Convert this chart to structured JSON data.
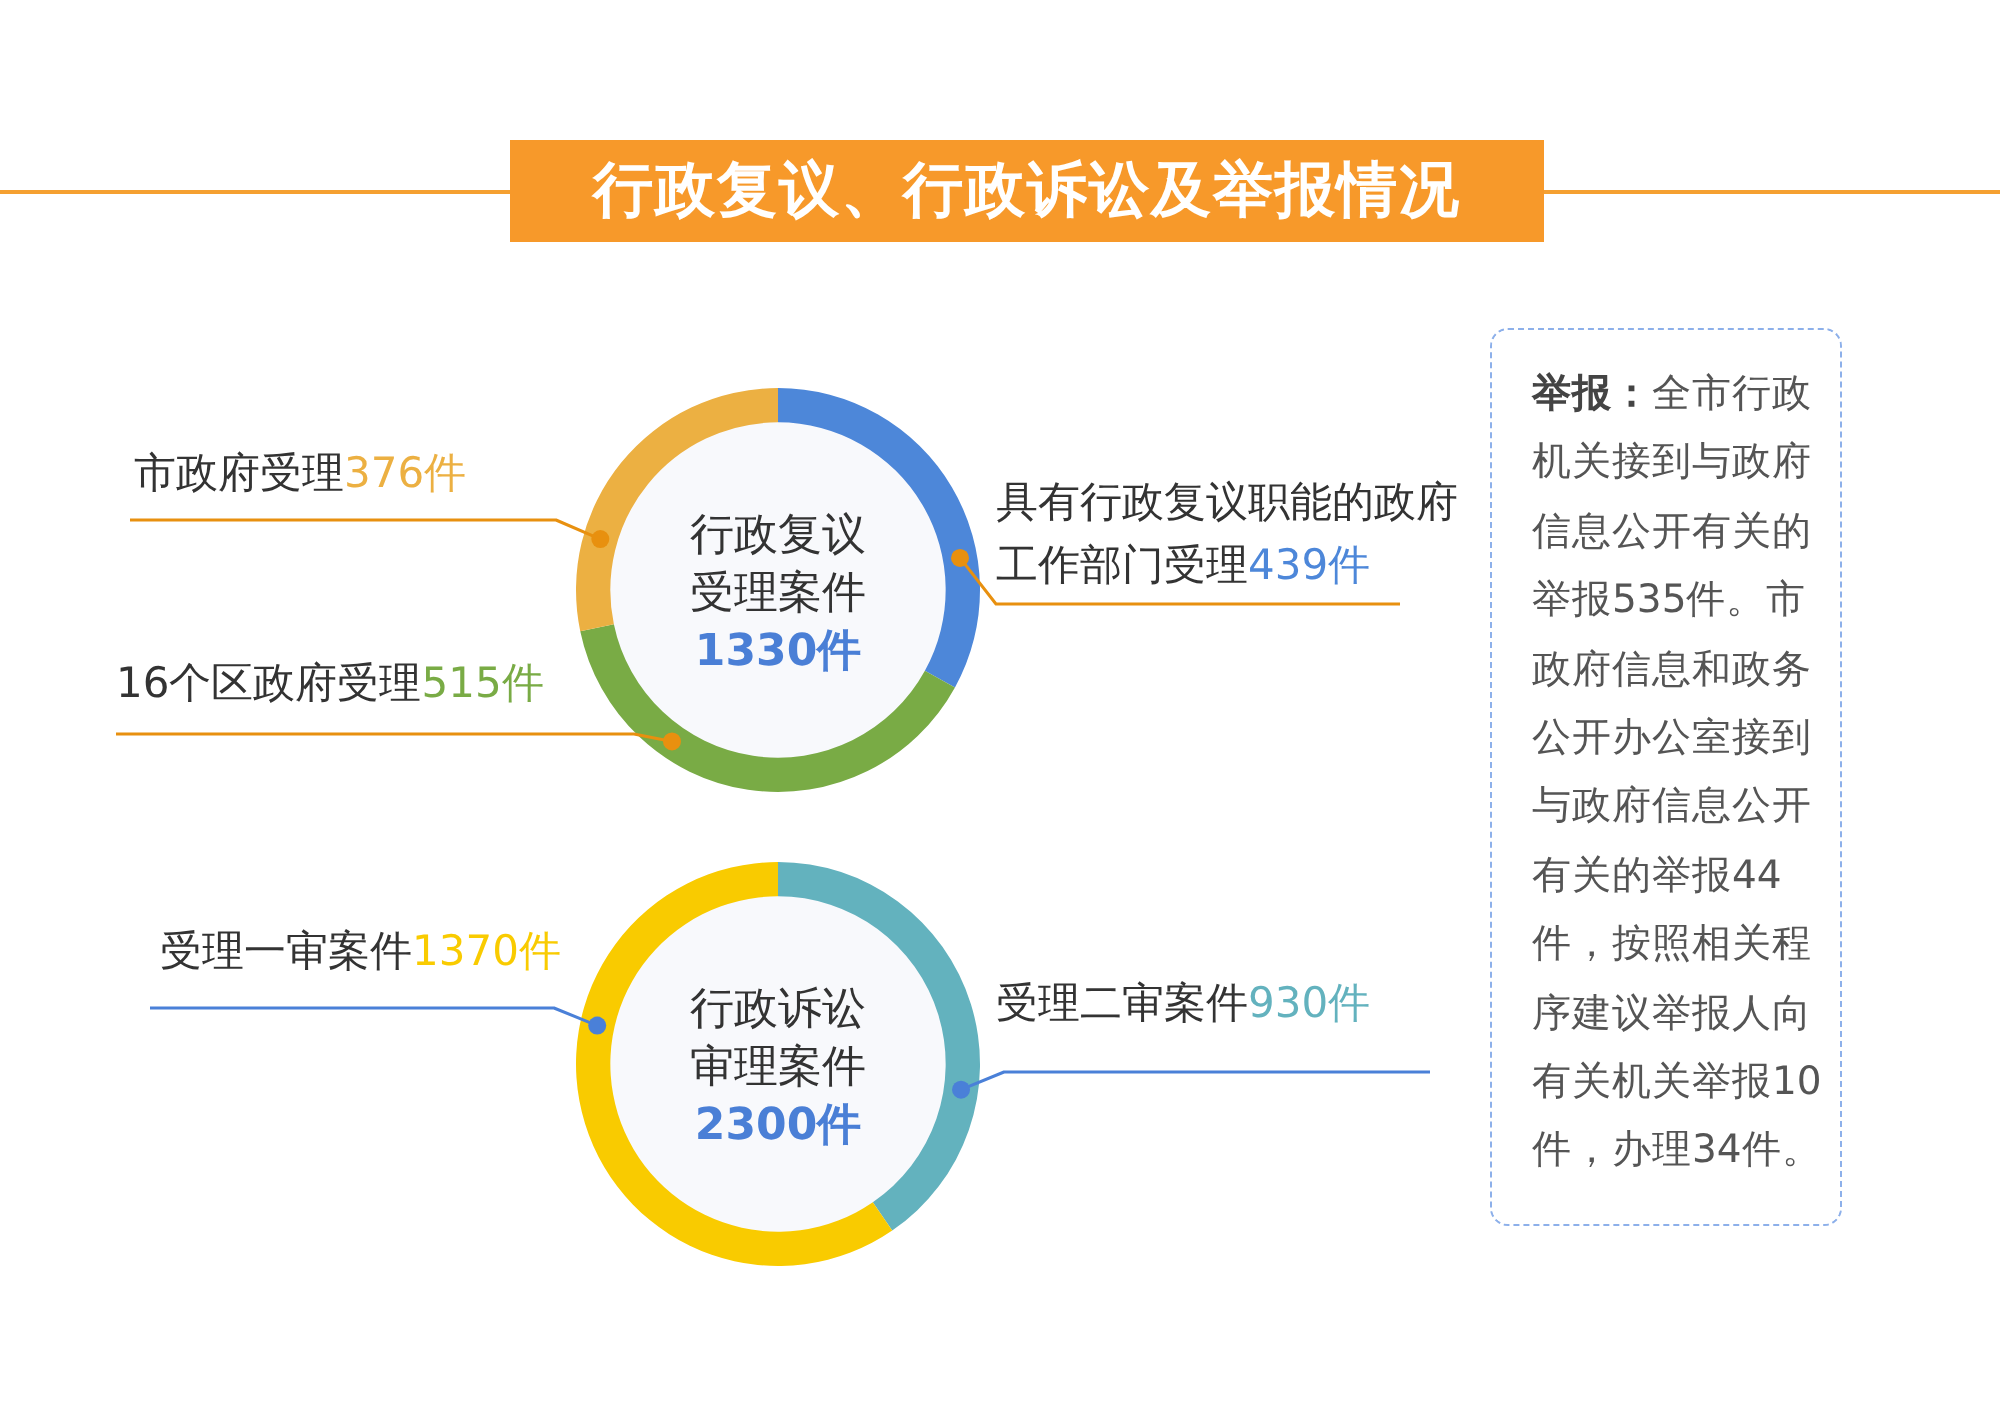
{
  "chart_data": [
    {
      "type": "other",
      "title": "行政复议、行政诉讼及举报情况"
    },
    {
      "type": "donut",
      "title": "行政复议受理案件",
      "subtitle": "1330件",
      "categories": [
        "具有行政复议职能的政府工作部门受理",
        "16个区政府受理",
        "市政府受理"
      ],
      "values": [
        439,
        515,
        376
      ],
      "colors": [
        "#4d87d9",
        "#79ab45",
        "#ecb042"
      ],
      "value_labels": [
        "439件",
        "515件",
        "376件"
      ]
    },
    {
      "type": "donut",
      "title": "行政诉讼审理案件",
      "subtitle": "2300件",
      "categories": [
        "受理二审案件",
        "受理一审案件"
      ],
      "values": [
        930,
        1370
      ],
      "colors": [
        "#63b2be",
        "#f9cb00"
      ],
      "value_labels": [
        "930件",
        "1370件"
      ]
    },
    {
      "type": "other",
      "title": "举报：",
      "annotations": [
        "全市行政机关接到与政府信息公开有关的举报535件。市政府信息和政务公开办公室接到与政府信息公开有关的举报44件，按照相关程序建议举报人向有关机关举报10件，办理34件。"
      ]
    }
  ]
}
